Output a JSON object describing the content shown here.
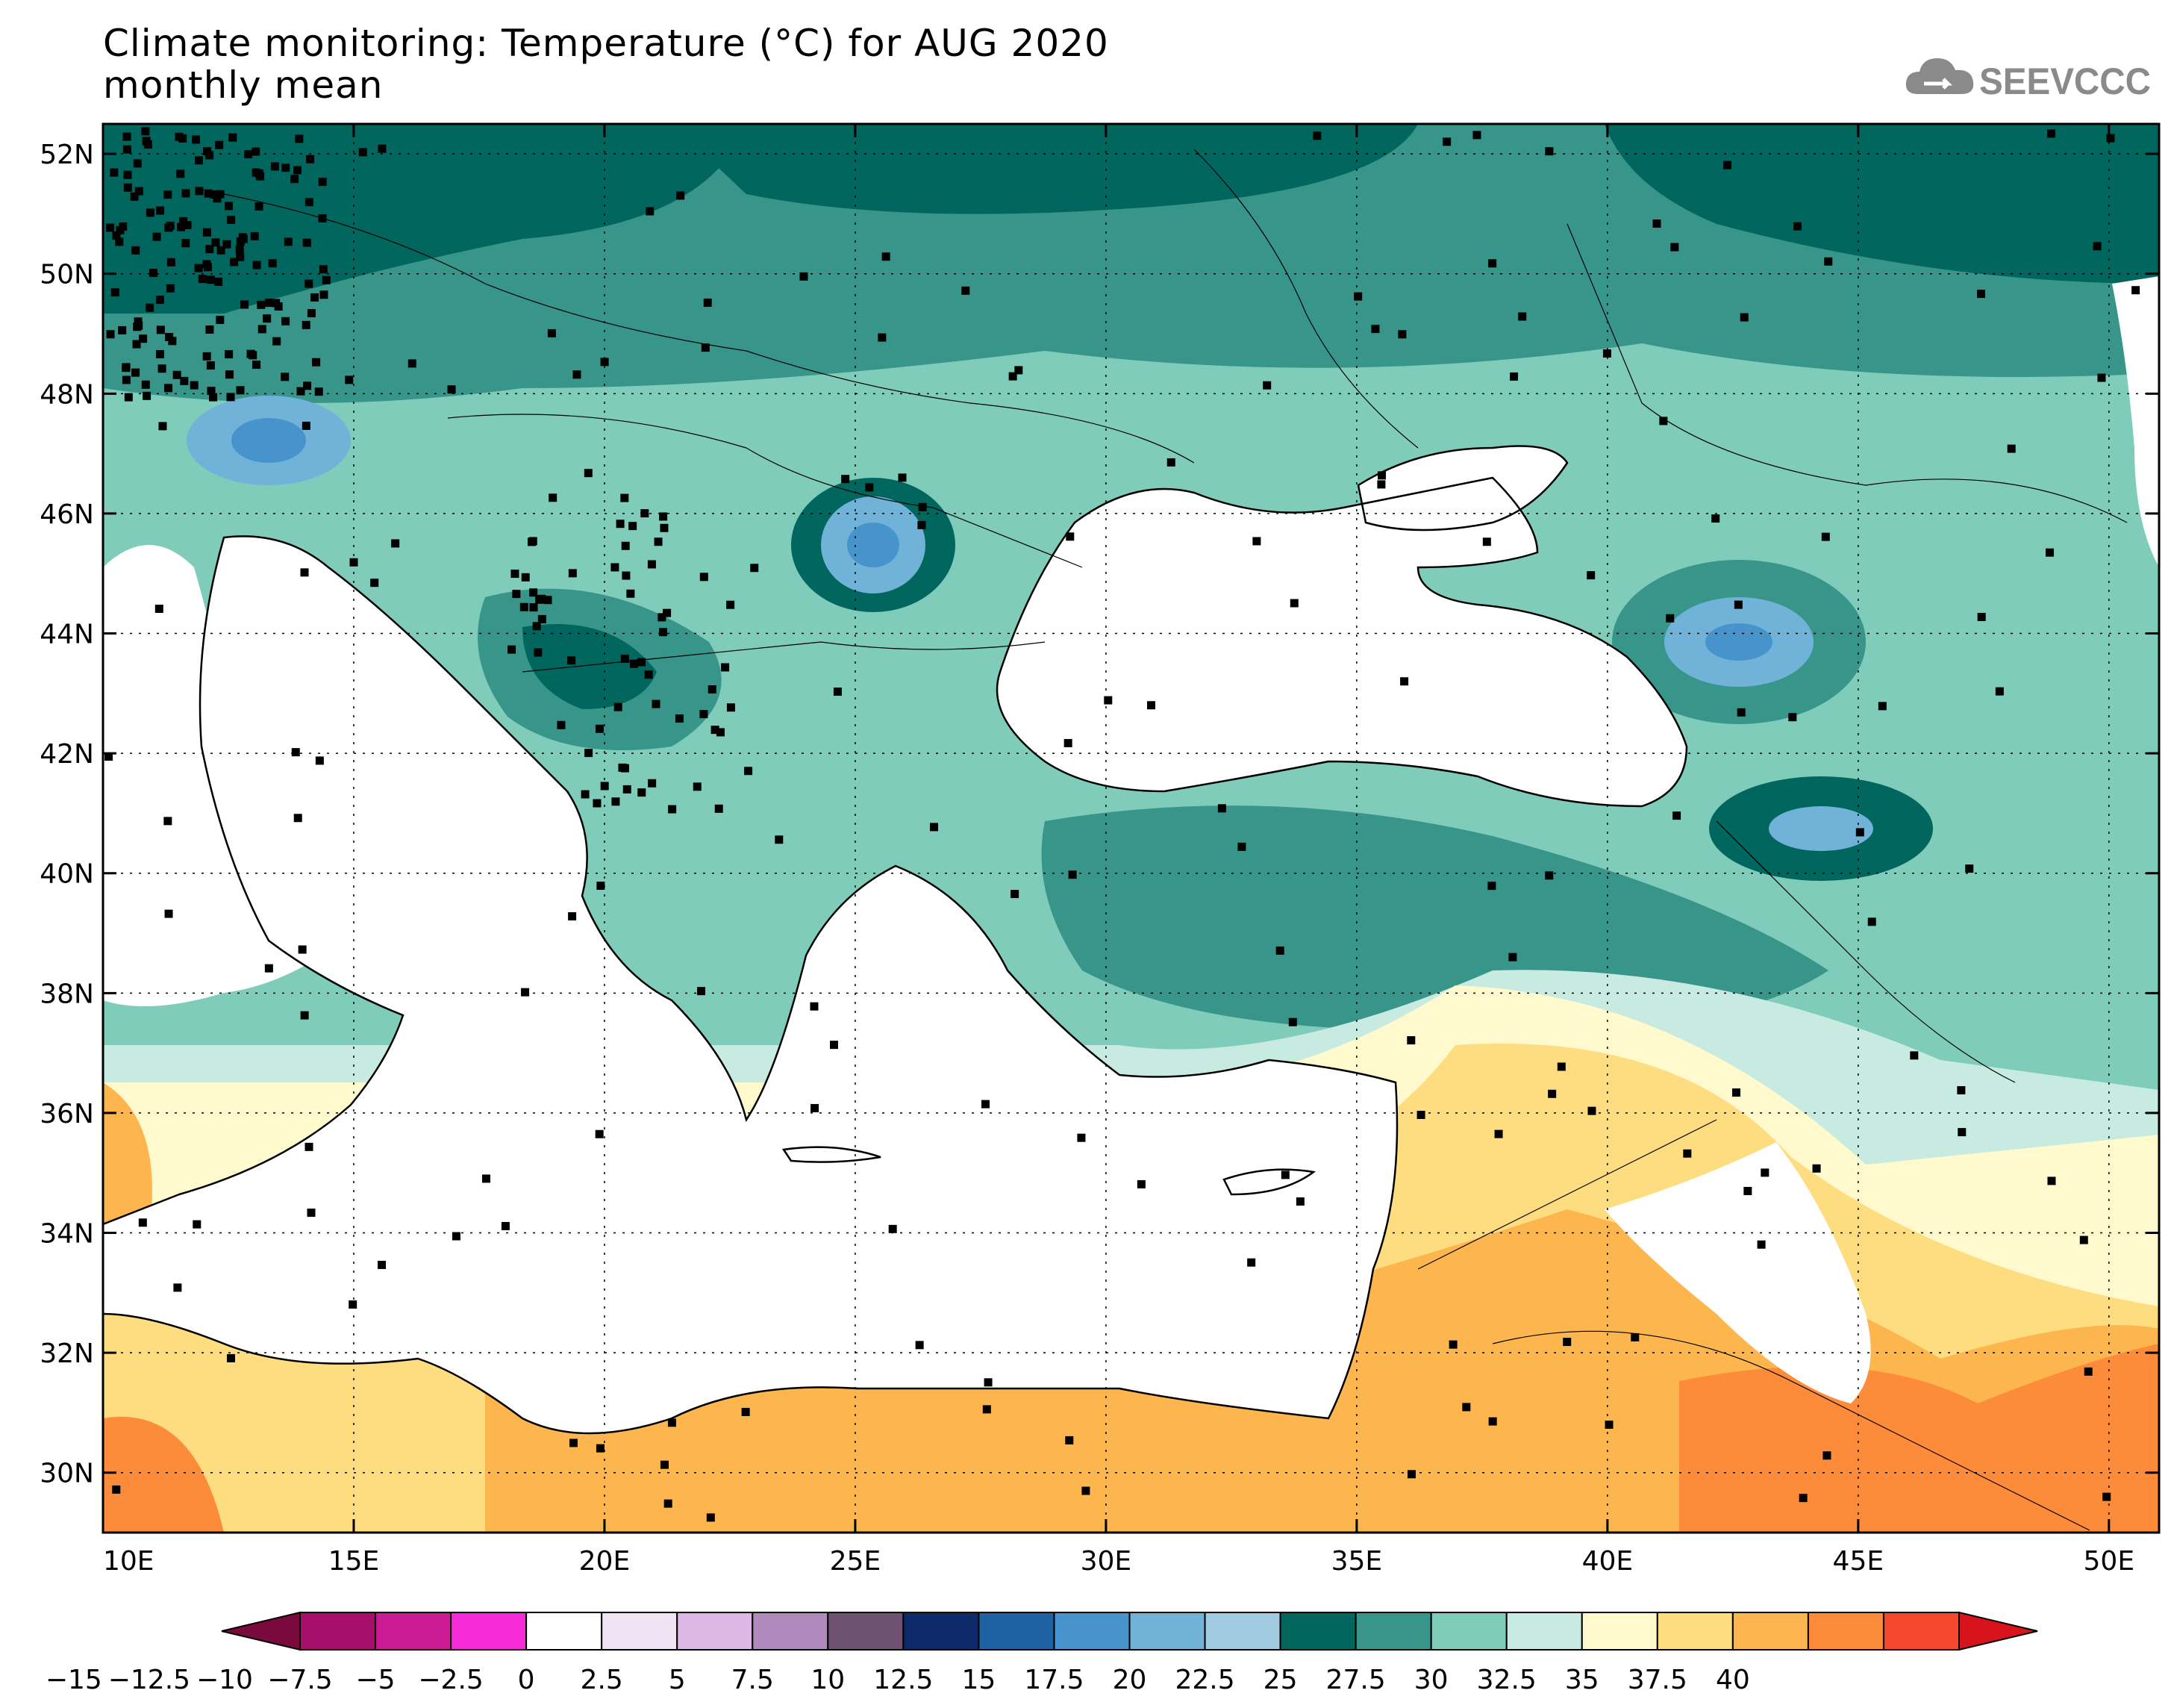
{
  "title": "Climate monitoring: Temperature (°C) for AUG 2020",
  "subtitle": "monthly mean",
  "logo": {
    "text": "SEEVCCC",
    "icon": "cloud-icon"
  },
  "map": {
    "lon_range": [
      10,
      51
    ],
    "lat_range": [
      29,
      52.5
    ],
    "lon_ticks": [
      {
        "v": 10,
        "label": "10E"
      },
      {
        "v": 15,
        "label": "15E"
      },
      {
        "v": 20,
        "label": "20E"
      },
      {
        "v": 25,
        "label": "25E"
      },
      {
        "v": 30,
        "label": "30E"
      },
      {
        "v": 35,
        "label": "35E"
      },
      {
        "v": 40,
        "label": "40E"
      },
      {
        "v": 45,
        "label": "45E"
      },
      {
        "v": 50,
        "label": "50E"
      }
    ],
    "lat_ticks": [
      {
        "v": 30,
        "label": "30N"
      },
      {
        "v": 32,
        "label": "32N"
      },
      {
        "v": 34,
        "label": "34N"
      },
      {
        "v": 36,
        "label": "36N"
      },
      {
        "v": 38,
        "label": "38N"
      },
      {
        "v": 40,
        "label": "40N"
      },
      {
        "v": 42,
        "label": "42N"
      },
      {
        "v": 44,
        "label": "44N"
      },
      {
        "v": 46,
        "label": "46N"
      },
      {
        "v": 48,
        "label": "48N"
      },
      {
        "v": 50,
        "label": "50N"
      },
      {
        "v": 52,
        "label": "52N"
      }
    ]
  },
  "colorbar": {
    "colors": [
      "#7a0a3c",
      "#a80e6c",
      "#cb1b94",
      "#f52bd7",
      "#ffffff",
      "#f0e4f4",
      "#dcb9e4",
      "#ae8abd",
      "#6f5272",
      "#0d2b6b",
      "#1f62a3",
      "#4794cc",
      "#70b2d8",
      "#a2cbe2",
      "#00665e",
      "#37958a",
      "#7fccbb",
      "#c7eae1",
      "#fffacd",
      "#fedd80",
      "#fdb54e",
      "#fc8b3a",
      "#f6462b",
      "#d7141c"
    ],
    "labels": [
      "−15",
      "−12.5",
      "−10",
      "−7.5",
      "−5",
      "−2.5",
      "0",
      "2.5",
      "5",
      "7.5",
      "10",
      "12.5",
      "15",
      "17.5",
      "20",
      "22.5",
      "25",
      "27.5",
      "30",
      "32.5",
      "35",
      "37.5",
      "40"
    ]
  }
}
